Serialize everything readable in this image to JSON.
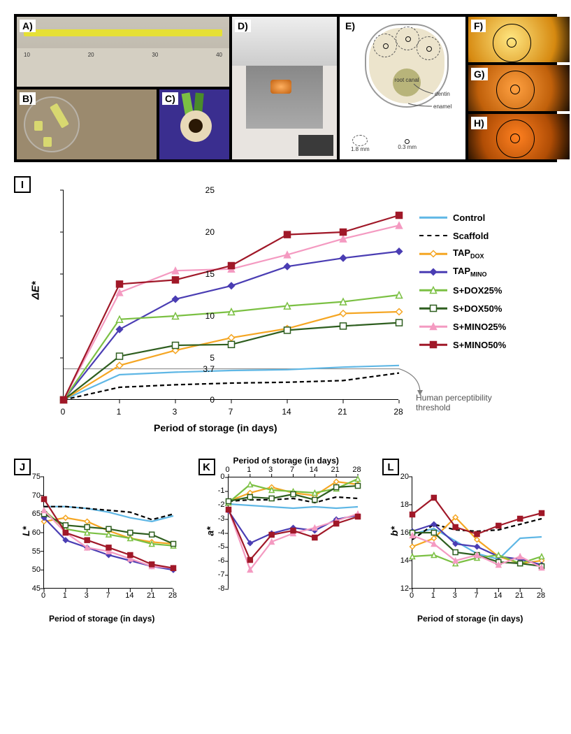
{
  "figure_width": 817,
  "figure_height": 1050,
  "panels_top": {
    "A": {
      "desc": "Scaffold strip on ruler",
      "ruler_ticks": [
        "10",
        "20",
        "30",
        "40"
      ]
    },
    "B": {
      "desc": "Scaffold cylinders in dish"
    },
    "C": {
      "desc": "Tooth cross-section"
    },
    "D": {
      "desc": "Spectrophotometer measurement"
    },
    "E": {
      "labels": {
        "root": "root\ncanal",
        "dentin": "dentin",
        "enamel": "enamel"
      },
      "scale": {
        "large": "1.8 mm",
        "small": "0.3 mm"
      }
    },
    "F": {
      "desc": "measurement view light"
    },
    "G": {
      "desc": "measurement view medium"
    },
    "H": {
      "desc": "measurement view dark"
    }
  },
  "series": [
    {
      "key": "Control",
      "label": "Control",
      "color": "#5fb7e5",
      "dash": "",
      "marker": "none",
      "fill": "#5fb7e5"
    },
    {
      "key": "Scaffold",
      "label": "Scaffold",
      "color": "#000000",
      "dash": "6,4",
      "marker": "none",
      "fill": "#000000"
    },
    {
      "key": "TAPdox",
      "label": "TAP_DOX",
      "color": "#f5a623",
      "dash": "",
      "marker": "diamond-open",
      "fill": "#ffffff"
    },
    {
      "key": "TAPmino",
      "label": "TAP_MINO",
      "color": "#4a3db3",
      "dash": "",
      "marker": "diamond-filled",
      "fill": "#4a3db3"
    },
    {
      "key": "SDOX25",
      "label": "S+DOX25%",
      "color": "#7bc043",
      "dash": "",
      "marker": "triangle-open",
      "fill": "#ffffff"
    },
    {
      "key": "SDOX50",
      "label": "S+DOX50%",
      "color": "#2e5e1f",
      "dash": "",
      "marker": "square-open",
      "fill": "#ffffff"
    },
    {
      "key": "SMINO25",
      "label": "S+MINO25%",
      "color": "#f49ac1",
      "dash": "",
      "marker": "triangle-filled",
      "fill": "#f49ac1"
    },
    {
      "key": "SMINO50",
      "label": "S+MINO50%",
      "color": "#a01828",
      "dash": "",
      "marker": "square-filled",
      "fill": "#a01828"
    }
  ],
  "x_days": [
    0,
    1,
    3,
    7,
    14,
    21,
    28
  ],
  "chart_I": {
    "title_y": "ΔE*",
    "title_x": "Period of storage (in days)",
    "ylim": [
      0,
      25
    ],
    "ytick_step": 5,
    "threshold": 3.7,
    "threshold_label": "Human perceptibility\nthreshold",
    "threshold_tick": "3.7",
    "data": {
      "Control": [
        0,
        3.0,
        3.3,
        3.5,
        3.6,
        3.9,
        4.1
      ],
      "Scaffold": [
        0,
        1.5,
        1.8,
        2.0,
        2.1,
        2.3,
        3.2
      ],
      "TAPdox": [
        0,
        4.1,
        5.9,
        7.4,
        8.5,
        10.3,
        10.5
      ],
      "TAPmino": [
        0,
        8.4,
        12.0,
        13.6,
        15.9,
        16.9,
        17.7
      ],
      "SDOX25": [
        0,
        9.6,
        10.0,
        10.5,
        11.2,
        11.7,
        12.5
      ],
      "SDOX50": [
        0,
        5.2,
        6.5,
        6.6,
        8.3,
        8.8,
        9.2
      ],
      "SMINO25": [
        0,
        12.8,
        15.4,
        15.6,
        17.3,
        19.2,
        20.8
      ],
      "SMINO50": [
        0,
        13.8,
        14.3,
        16.0,
        19.7,
        20.0,
        22.0
      ]
    },
    "annotation_arrow": true
  },
  "chart_J": {
    "title_y": "L*",
    "title_x": "Period of storage (in days)",
    "ylim": [
      45,
      75
    ],
    "yticks": [
      45,
      50,
      55,
      60,
      65,
      70,
      75
    ],
    "data": {
      "Control": [
        67,
        67,
        66.5,
        65.5,
        64,
        63,
        64.5
      ],
      "Scaffold": [
        67,
        67,
        66.5,
        66,
        65.5,
        63.5,
        65
      ],
      "TAPdox": [
        63,
        64,
        63,
        60.5,
        58.5,
        57.5,
        57
      ],
      "TAPmino": [
        64,
        58,
        56,
        54,
        52.5,
        51,
        50
      ],
      "SDOX25": [
        66,
        61,
        60,
        59.5,
        58.5,
        57,
        56.5
      ],
      "SDOX50": [
        65,
        62,
        61.5,
        61,
        60,
        59.5,
        57
      ],
      "SMINO25": [
        66,
        60,
        56,
        55,
        53,
        51,
        50.5
      ],
      "SMINO50": [
        69,
        60,
        58,
        56,
        54,
        51.5,
        50.5
      ]
    }
  },
  "chart_K": {
    "title_y": "a*",
    "title_x": "Period of storage (in days)",
    "ylim": [
      -8,
      0
    ],
    "yticks": [
      0,
      -1,
      -2,
      -3,
      -4,
      -5,
      -6,
      -7,
      -8
    ],
    "axis_on_top": true,
    "data": {
      "Control": [
        -1.9,
        -2.0,
        -2.1,
        -2.2,
        -2.1,
        -2.2,
        -2.1
      ],
      "Scaffold": [
        -1.7,
        -1.6,
        -1.6,
        -1.5,
        -1.8,
        -1.4,
        -1.5
      ],
      "TAPdox": [
        -1.7,
        -1.1,
        -0.7,
        -1.1,
        -1.3,
        -0.3,
        -0.5
      ],
      "TAPmino": [
        -2.4,
        -4.7,
        -4.0,
        -3.6,
        -3.8,
        -3.0,
        -2.7
      ],
      "SDOX25": [
        -1.8,
        -0.5,
        -0.9,
        -1.0,
        -1.1,
        -0.8,
        -0.1
      ],
      "SDOX50": [
        -1.7,
        -1.4,
        -1.5,
        -1.2,
        -1.6,
        -0.7,
        -0.6
      ],
      "SMINO25": [
        -2.3,
        -6.6,
        -4.6,
        -4.0,
        -3.6,
        -3.1,
        -2.6
      ],
      "SMINO50": [
        -2.3,
        -5.9,
        -4.1,
        -3.8,
        -4.3,
        -3.3,
        -2.8
      ]
    }
  },
  "chart_L": {
    "title_y": "b*",
    "title_x": "Period of storage (in days)",
    "ylim": [
      12,
      20
    ],
    "yticks": [
      12,
      14,
      16,
      18,
      20
    ],
    "data": {
      "Control": [
        15.9,
        16.3,
        15.4,
        14.5,
        14.1,
        15.6,
        15.7
      ],
      "Scaffold": [
        15.5,
        16.6,
        16.2,
        16.1,
        16.2,
        16.6,
        17.0
      ],
      "TAPdox": [
        15.0,
        15.6,
        17.1,
        15.5,
        14.3,
        13.8,
        14.0
      ],
      "TAPmino": [
        16.1,
        16.6,
        15.2,
        15.0,
        14.3,
        14.1,
        13.7
      ],
      "SDOX25": [
        14.3,
        14.4,
        13.8,
        14.2,
        14.4,
        13.8,
        14.3
      ],
      "SDOX50": [
        16.0,
        16.0,
        14.6,
        14.4,
        13.9,
        13.8,
        13.6
      ],
      "SMINO25": [
        15.8,
        15.2,
        14.0,
        14.4,
        13.7,
        14.3,
        13.5
      ],
      "SMINO50": [
        17.3,
        18.5,
        16.4,
        15.9,
        16.5,
        17.0,
        17.4
      ]
    }
  },
  "styling": {
    "background": "#ffffff",
    "axis_color": "#000000",
    "font": "Arial",
    "main_line_width": 2.2,
    "marker_size": 8
  }
}
